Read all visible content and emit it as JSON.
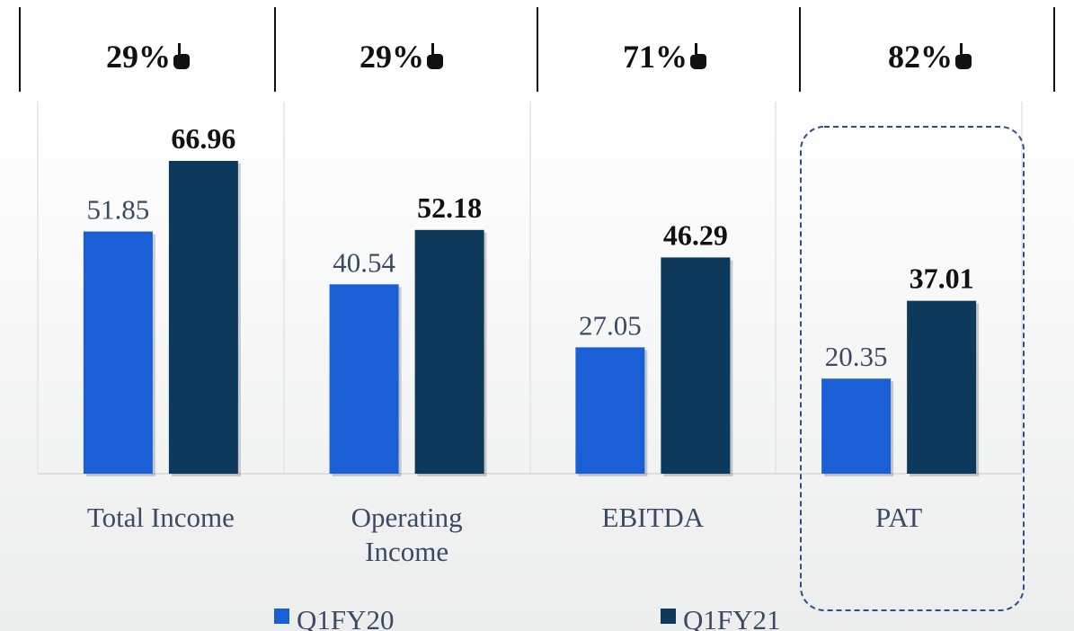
{
  "chart_data": {
    "type": "bar",
    "categories": [
      "Total Income",
      "Operating Income",
      "EBITDA",
      "PAT"
    ],
    "growth": [
      {
        "value": 29,
        "label": "29%"
      },
      {
        "value": 29,
        "label": "29%"
      },
      {
        "value": 71,
        "label": "71%"
      },
      {
        "value": 82,
        "label": "82%"
      }
    ],
    "series": [
      {
        "name": "Q1FY20",
        "color": "#1a5fd6",
        "values": [
          51.85,
          40.54,
          27.05,
          20.35
        ]
      },
      {
        "name": "Q1FY21",
        "color": "#0d3a5c",
        "values": [
          66.96,
          52.18,
          46.29,
          37.01
        ]
      }
    ],
    "legend": "bottom"
  }
}
